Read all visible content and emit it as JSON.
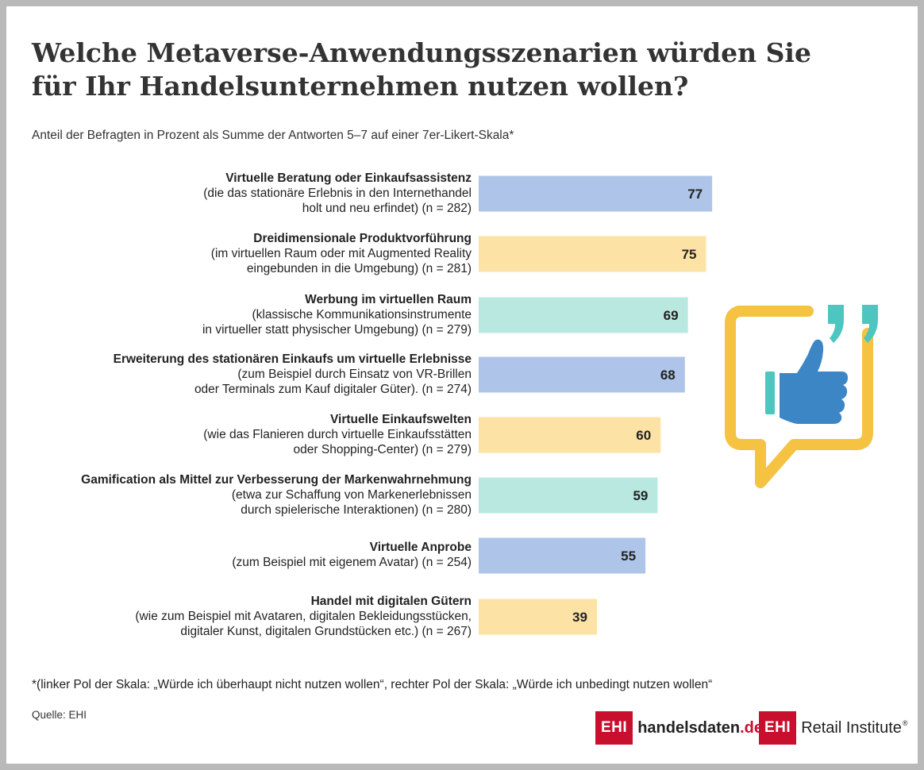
{
  "title_line1": "Welche Metaverse-Anwendungsszenarien würden Sie",
  "title_line2": "für Ihr Handelsunternehmen nutzen wollen?",
  "subtitle": "Anteil der Befragten in Prozent als Summe der Antworten 5–7 auf einer 7er-Likert-Skala*",
  "footnote": "*(linker Pol der Skala:  „Würde ich überhaupt nicht nutzen wollen“, rechter Pol der Skala: „Würde ich unbedingt nutzen wollen“",
  "source": "Quelle: EHI",
  "logos": {
    "handelsdaten_box": "EHI",
    "handelsdaten_name": "handelsdaten",
    "handelsdaten_tld": ".de",
    "retail_box": "EHI",
    "retail_name": "Retail Institute",
    "retail_reg": "®"
  },
  "colors": {
    "blue": "#aec4e8",
    "yellow": "#fde2a6",
    "teal": "#b8e8df",
    "icon_yellow": "#f5c242",
    "icon_blue": "#3d86c6",
    "icon_teal": "#4cc6bf",
    "logo_red": "#c8102e"
  },
  "icon": "thumbs-up-speech-bubble-icon",
  "chart_data": {
    "type": "bar",
    "orientation": "horizontal",
    "unit": "%",
    "xlim": [
      0,
      100
    ],
    "categories": [
      {
        "title": "Virtuelle Beratung oder Einkaufsassistenz",
        "desc1": "(die das stationäre Erlebnis in den Internethandel",
        "desc2": "holt und neu erfindet) (n = 282)",
        "value": 77,
        "color": "blue"
      },
      {
        "title": "Dreidimensionale Produktvorführung",
        "desc1": "(im virtuellen Raum oder mit Augmented Reality",
        "desc2": "eingebunden in die Umgebung) (n = 281)",
        "value": 75,
        "color": "yellow"
      },
      {
        "title": "Werbung im virtuellen Raum",
        "desc1": "(klassische Kommunikationsinstrumente",
        "desc2": "in virtueller statt physischer Umgebung) (n = 279)",
        "value": 69,
        "color": "teal"
      },
      {
        "title": "Erweiterung des stationären Einkaufs um virtuelle Erlebnisse",
        "desc1": "(zum Beispiel durch Einsatz von VR-Brillen",
        "desc2": "oder Terminals zum Kauf digitaler Güter). (n = 274)",
        "value": 68,
        "color": "blue"
      },
      {
        "title": "Virtuelle Einkaufswelten",
        "desc1": "(wie das Flanieren durch virtuelle Einkaufsstätten",
        "desc2": "oder Shopping-Center) (n = 279)",
        "value": 60,
        "color": "yellow"
      },
      {
        "title": "Gamification als Mittel zur Verbesserung der Markenwahrnehmung",
        "desc1": "(etwa zur Schaffung von Markenerlebnissen",
        "desc2": "durch spielerische Interaktionen) (n = 280)",
        "value": 59,
        "color": "teal"
      },
      {
        "title": "Virtuelle Anprobe",
        "desc1": "(zum Beispiel mit eigenem Avatar) (n = 254)",
        "desc2": "",
        "value": 55,
        "color": "blue"
      },
      {
        "title": "Handel mit digitalen Gütern",
        "desc1": "(wie zum Beispiel mit Avataren, digitalen Bekleidungsstücken,",
        "desc2": "digitaler Kunst, digitalen Grundstücken etc.) (n = 267)",
        "value": 39,
        "color": "yellow"
      }
    ]
  }
}
